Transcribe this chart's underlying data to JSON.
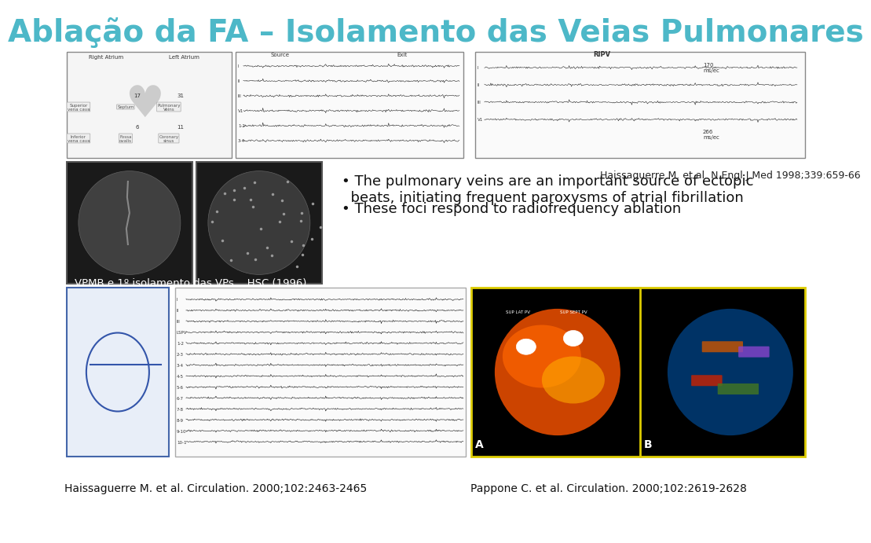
{
  "title": "Ablação da FA – Isolamento das Veias Pulmonares",
  "title_color": "#4DB8C8",
  "title_fontsize": 28,
  "bg_color": "#FFFFFF",
  "bullet_text": [
    "The pulmonary veins are an important source of ectopic\n  beats, initiating frequent paroxysms of atrial fibrillation",
    "These foci respond to radiofrequency ablation"
  ],
  "bullet_fontsize": 13,
  "citation1_bottom": "Haissaguerre M. et al. Circulation. 2000;102:2463-2465",
  "citation2_bottom": "Pappone C. et al. Circulation. 2000;102:2619-2628",
  "citation_right": "Haissaguerre M. et al. N Engl J Med 1998;339:659-66",
  "vpmb_label": "VPMB e 1º isolamento das VPs    HSC (1996)",
  "citation_fontsize": 10,
  "vpmb_fontsize": 10,
  "top_panel_bg": "#F0F0F0",
  "xray_bg": "#1A1A1A",
  "bottom_ecg_bg": "#F8F8F8"
}
